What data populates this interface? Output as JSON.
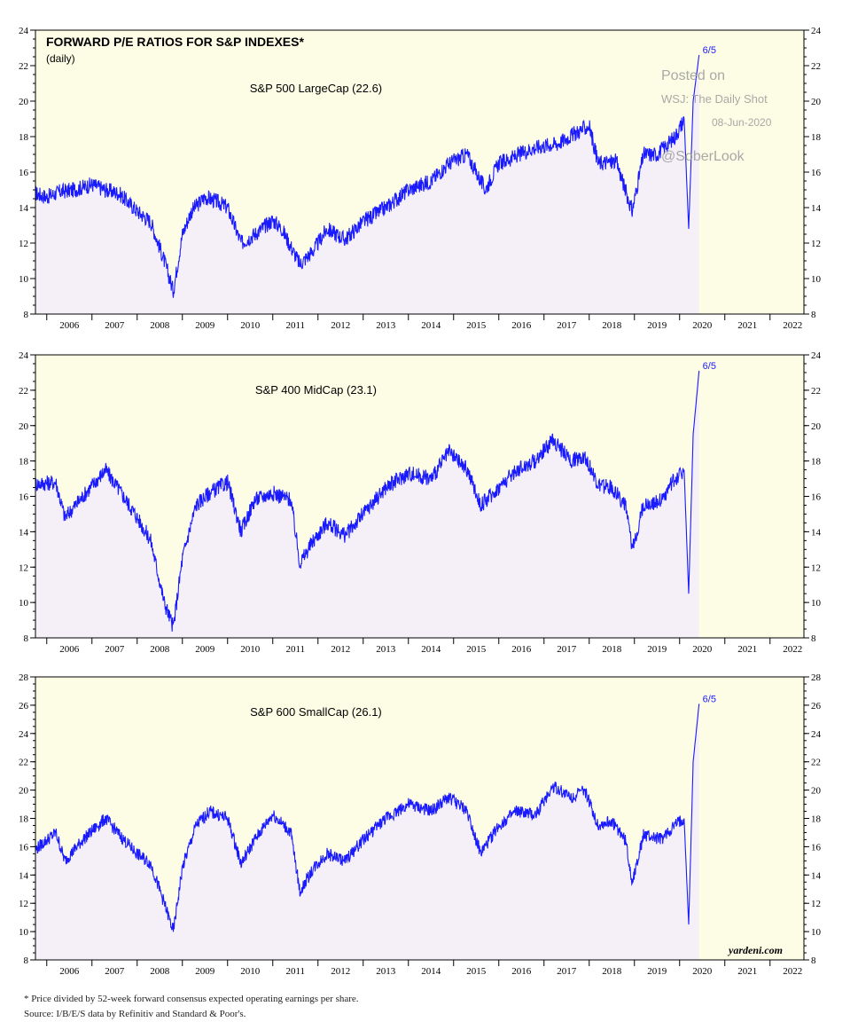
{
  "header": {
    "title": "FORWARD P/E RATIOS FOR S&P INDEXES*",
    "subtitle": "(daily)"
  },
  "watermark": {
    "line1": "Posted on",
    "line2": "WSJ: The Daily Shot",
    "line3": "08-Jun-2020",
    "line4": "@SoberLook"
  },
  "credit": "yardeni.com",
  "footnotes": {
    "note": "*   Price divided by 52-week forward consensus expected operating earnings per share.",
    "source": "Source: I/B/E/S data by Refinitiv and Standard & Poor's."
  },
  "colors": {
    "line": "#1a1aff",
    "past_fill": "#f5f0f8",
    "future_fill": "#fdfde6",
    "frame": "#000000"
  },
  "chart_data": [
    {
      "type": "line",
      "label": "S&P 500 LargeCap (22.6)",
      "end_label": "6/5",
      "ylim": [
        8,
        24
      ],
      "yticks": [
        8,
        10,
        12,
        14,
        16,
        18,
        20,
        22,
        24
      ],
      "xticks": [
        "2006",
        "2007",
        "2008",
        "2009",
        "2010",
        "2011",
        "2012",
        "2013",
        "2014",
        "2015",
        "2016",
        "2017",
        "2018",
        "2019",
        "2020",
        "2021",
        "2022"
      ],
      "x": [
        2005.75,
        2006.0,
        2006.3,
        2006.6,
        2007.0,
        2007.3,
        2007.6,
        2008.0,
        2008.3,
        2008.6,
        2008.8,
        2009.0,
        2009.2,
        2009.5,
        2009.8,
        2010.0,
        2010.3,
        2010.6,
        2011.0,
        2011.2,
        2011.6,
        2011.9,
        2012.2,
        2012.6,
        2013.0,
        2013.5,
        2014.0,
        2014.5,
        2014.9,
        2015.3,
        2015.7,
        2016.0,
        2016.3,
        2016.7,
        2017.0,
        2017.3,
        2017.7,
        2018.0,
        2018.2,
        2018.6,
        2018.95,
        2019.2,
        2019.5,
        2019.9,
        2020.1,
        2020.2,
        2020.3,
        2020.43
      ],
      "values": [
        14.8,
        14.6,
        14.9,
        15.0,
        15.3,
        15.0,
        14.8,
        13.8,
        13.2,
        11.0,
        9.3,
        12.5,
        13.8,
        14.6,
        14.3,
        14.0,
        12.0,
        12.5,
        13.3,
        12.8,
        10.8,
        11.6,
        12.8,
        12.2,
        13.2,
        14.0,
        15.0,
        15.5,
        16.5,
        17.0,
        15.0,
        16.5,
        16.8,
        17.3,
        17.5,
        17.6,
        18.2,
        18.6,
        16.5,
        16.6,
        13.8,
        17.0,
        17.0,
        18.0,
        19.0,
        12.8,
        20.0,
        22.6
      ]
    },
    {
      "type": "line",
      "label": "S&P 400 MidCap (23.1)",
      "end_label": "6/5",
      "ylim": [
        8,
        24
      ],
      "yticks": [
        8,
        10,
        12,
        14,
        16,
        18,
        20,
        22,
        24
      ],
      "xticks": [
        "2006",
        "2007",
        "2008",
        "2009",
        "2010",
        "2011",
        "2012",
        "2013",
        "2014",
        "2015",
        "2016",
        "2017",
        "2018",
        "2019",
        "2020",
        "2021",
        "2022"
      ],
      "x": [
        2005.75,
        2006.2,
        2006.4,
        2006.8,
        2007.3,
        2007.7,
        2008.0,
        2008.3,
        2008.6,
        2008.8,
        2009.0,
        2009.3,
        2009.6,
        2010.0,
        2010.3,
        2010.6,
        2011.0,
        2011.4,
        2011.6,
        2011.9,
        2012.2,
        2012.6,
        2013.0,
        2013.5,
        2014.0,
        2014.5,
        2014.9,
        2015.3,
        2015.6,
        2016.0,
        2016.4,
        2016.8,
        2017.2,
        2017.6,
        2017.9,
        2018.2,
        2018.5,
        2018.8,
        2018.95,
        2019.2,
        2019.6,
        2019.9,
        2020.1,
        2020.2,
        2020.3,
        2020.43
      ],
      "values": [
        16.7,
        16.8,
        14.8,
        16.0,
        17.5,
        16.0,
        14.8,
        13.5,
        10.0,
        8.6,
        12.5,
        15.5,
        16.2,
        16.8,
        14.0,
        15.8,
        16.2,
        15.8,
        12.2,
        13.5,
        14.5,
        13.8,
        15.0,
        16.5,
        17.3,
        17.0,
        18.5,
        17.5,
        15.5,
        16.5,
        17.5,
        18.0,
        19.2,
        18.0,
        18.3,
        16.6,
        16.5,
        15.5,
        13.0,
        15.5,
        15.8,
        17.0,
        17.5,
        10.5,
        19.5,
        23.1
      ]
    },
    {
      "type": "line",
      "label": "S&P 600 SmallCap (26.1)",
      "end_label": "6/5",
      "ylim": [
        8,
        28
      ],
      "yticks": [
        8,
        10,
        12,
        14,
        16,
        18,
        20,
        22,
        24,
        26,
        28
      ],
      "xticks": [
        "2006",
        "2007",
        "2008",
        "2009",
        "2010",
        "2011",
        "2012",
        "2013",
        "2014",
        "2015",
        "2016",
        "2017",
        "2018",
        "2019",
        "2020",
        "2021",
        "2022"
      ],
      "x": [
        2005.75,
        2006.2,
        2006.4,
        2006.8,
        2007.3,
        2007.7,
        2008.0,
        2008.3,
        2008.6,
        2008.8,
        2009.0,
        2009.3,
        2009.6,
        2010.0,
        2010.3,
        2010.6,
        2011.0,
        2011.4,
        2011.6,
        2011.9,
        2012.2,
        2012.6,
        2013.0,
        2013.5,
        2014.0,
        2014.5,
        2014.9,
        2015.3,
        2015.6,
        2016.0,
        2016.4,
        2016.8,
        2017.2,
        2017.6,
        2017.9,
        2018.2,
        2018.5,
        2018.8,
        2018.95,
        2019.2,
        2019.6,
        2019.9,
        2020.1,
        2020.2,
        2020.3,
        2020.43
      ],
      "values": [
        15.8,
        17.0,
        15.0,
        16.5,
        18.0,
        16.5,
        15.5,
        14.8,
        12.0,
        10.0,
        14.5,
        17.5,
        18.5,
        18.0,
        14.8,
        16.5,
        18.3,
        17.0,
        12.8,
        14.5,
        15.5,
        15.0,
        16.5,
        18.0,
        19.0,
        18.5,
        19.5,
        18.5,
        15.5,
        17.5,
        18.5,
        18.2,
        20.3,
        19.5,
        20.0,
        17.5,
        17.8,
        16.5,
        13.5,
        16.8,
        16.5,
        17.5,
        18.0,
        10.5,
        22.0,
        26.1
      ]
    }
  ]
}
